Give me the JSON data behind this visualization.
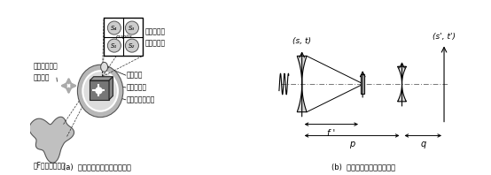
{
  "bg_color": "#ffffff",
  "fig_width": 5.54,
  "fig_height": 1.98,
  "dpi": 100,
  "panel_a_caption": "(a)  金字塔波前传感光路示意图",
  "panel_b_caption": "(b)  沿光轴方向的截面示意图",
  "label_zhongjitouching": "中继透镜",
  "label_jztmlens": "金字塔棱镜",
  "label_mudian": "点目标的模糊像",
  "label_dashu": "大F数望远镜系统",
  "label_zhendang": "金字塔棱镜的\n振荡方向",
  "label_tantest": "探测面上的\n四个光瞳像",
  "label_pupils": "pupils",
  "label_s4": "S₄",
  "label_s3": "S₃",
  "label_s1": "S₁",
  "label_s2": "S₂",
  "label_st": "(s, t)",
  "label_stprime": "(s', t')",
  "label_fp": "f '",
  "label_p": "p",
  "label_q": "q",
  "gray_light": "#d0d0d0",
  "gray_medium": "#888888",
  "gray_dark": "#444444",
  "black": "#000000"
}
